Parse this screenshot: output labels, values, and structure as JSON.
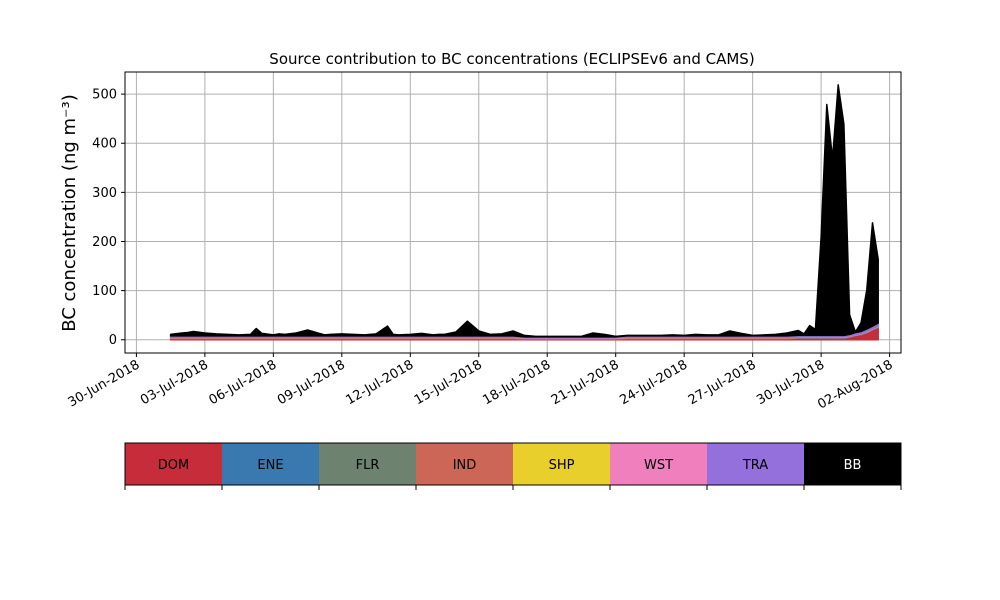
{
  "chart_data": {
    "type": "area",
    "title": "Source contribution to BC concentrations (ECLIPSEv6 and CAMS)",
    "xlabel": "",
    "ylabel": "BC concentration (ng m⁻³)",
    "ylim": [
      -27,
      545
    ],
    "xlim": [
      "2018-06-29T12:00",
      "2018-08-02T12:00"
    ],
    "yticks": [
      0,
      100,
      200,
      300,
      400,
      500
    ],
    "xticks": [
      "30-Jun-2018",
      "03-Jul-2018",
      "06-Jul-2018",
      "09-Jul-2018",
      "12-Jul-2018",
      "15-Jul-2018",
      "18-Jul-2018",
      "21-Jul-2018",
      "24-Jul-2018",
      "27-Jul-2018",
      "30-Jul-2018",
      "02-Aug-2018"
    ],
    "grid": true,
    "stacked": true,
    "x": [
      "2018-07-01T12:00",
      "2018-07-02T00:00",
      "2018-07-02T06:00",
      "2018-07-02T12:00",
      "2018-07-03T00:00",
      "2018-07-03T12:00",
      "2018-07-04T00:00",
      "2018-07-04T12:00",
      "2018-07-05T00:00",
      "2018-07-05T06:00",
      "2018-07-05T12:00",
      "2018-07-06T00:00",
      "2018-07-06T06:00",
      "2018-07-06T12:00",
      "2018-07-07T00:00",
      "2018-07-07T12:00",
      "2018-07-08T00:00",
      "2018-07-08T06:00",
      "2018-07-08T12:00",
      "2018-07-09T00:00",
      "2018-07-09T12:00",
      "2018-07-10T00:00",
      "2018-07-10T12:00",
      "2018-07-11T00:00",
      "2018-07-11T06:00",
      "2018-07-11T12:00",
      "2018-07-12T00:00",
      "2018-07-12T12:00",
      "2018-07-13T00:00",
      "2018-07-13T06:00",
      "2018-07-13T12:00",
      "2018-07-14T00:00",
      "2018-07-14T12:00",
      "2018-07-15T00:00",
      "2018-07-15T12:00",
      "2018-07-16T00:00",
      "2018-07-16T12:00",
      "2018-07-17T00:00",
      "2018-07-17T12:00",
      "2018-07-18T00:00",
      "2018-07-18T12:00",
      "2018-07-19T00:00",
      "2018-07-19T12:00",
      "2018-07-20T00:00",
      "2018-07-20T12:00",
      "2018-07-21T00:00",
      "2018-07-21T12:00",
      "2018-07-22T00:00",
      "2018-07-22T12:00",
      "2018-07-23T00:00",
      "2018-07-23T12:00",
      "2018-07-24T00:00",
      "2018-07-24T12:00",
      "2018-07-25T00:00",
      "2018-07-25T12:00",
      "2018-07-26T00:00",
      "2018-07-26T12:00",
      "2018-07-27T00:00",
      "2018-07-27T12:00",
      "2018-07-28T00:00",
      "2018-07-28T12:00",
      "2018-07-29T00:00",
      "2018-07-29T06:00",
      "2018-07-29T12:00",
      "2018-07-29T18:00",
      "2018-07-30T00:00",
      "2018-07-30T06:00",
      "2018-07-30T12:00",
      "2018-07-30T18:00",
      "2018-07-31T00:00",
      "2018-07-31T06:00",
      "2018-07-31T12:00",
      "2018-07-31T18:00",
      "2018-08-01T00:00",
      "2018-08-01T06:00",
      "2018-08-01T12:00"
    ],
    "series": [
      {
        "name": "DOM",
        "color": "#c62c3a",
        "values": [
          2,
          2,
          2,
          2,
          2,
          2,
          2,
          2,
          2,
          2,
          2,
          2,
          2,
          2,
          2,
          2,
          2,
          2,
          2,
          2,
          2,
          2,
          2,
          2,
          2,
          2,
          2,
          2,
          2,
          2,
          2,
          2,
          2,
          2,
          2,
          2,
          2,
          1,
          1,
          1,
          1,
          1,
          1,
          1,
          1,
          1,
          2,
          2,
          2,
          2,
          2,
          2,
          2,
          2,
          2,
          2,
          2,
          2,
          2,
          2,
          2,
          3,
          3,
          3,
          3,
          3,
          3,
          3,
          3,
          3,
          5,
          8,
          10,
          14,
          20,
          25
        ]
      },
      {
        "name": "ENE",
        "color": "#3a78b0",
        "values": [
          0.5,
          0.5,
          0.5,
          0.5,
          0.5,
          0.5,
          0.5,
          0.5,
          0.5,
          0.5,
          0.5,
          0.5,
          0.5,
          0.5,
          0.5,
          0.5,
          0.5,
          0.5,
          0.5,
          0.5,
          0.5,
          0.5,
          0.5,
          0.5,
          0.5,
          0.5,
          0.5,
          0.5,
          0.5,
          0.5,
          0.5,
          0.5,
          0.5,
          0.5,
          0.5,
          0.5,
          0.5,
          0.5,
          0.5,
          0.5,
          0.5,
          0.5,
          0.5,
          0.5,
          0.5,
          0.5,
          0.5,
          0.5,
          0.5,
          0.5,
          0.5,
          0.5,
          0.5,
          0.5,
          0.5,
          0.5,
          0.5,
          0.5,
          0.5,
          0.5,
          0.5,
          0.5,
          0.5,
          0.5,
          0.5,
          0.5,
          0.5,
          0.5,
          0.5,
          0.5,
          0.5,
          0.5,
          0.5,
          0.5,
          0.5,
          0.5
        ]
      },
      {
        "name": "FLR",
        "color": "#6e8270",
        "values": [
          0.5,
          0.5,
          0.5,
          0.5,
          0.5,
          0.5,
          0.5,
          0.5,
          0.5,
          0.5,
          0.5,
          0.5,
          0.5,
          0.5,
          0.5,
          0.5,
          0.5,
          0.5,
          0.5,
          0.5,
          0.5,
          0.5,
          0.5,
          0.5,
          0.5,
          0.5,
          0.5,
          0.5,
          0.5,
          0.5,
          0.5,
          0.5,
          0.5,
          0.5,
          0.5,
          0.5,
          0.5,
          0.5,
          0.5,
          0.5,
          0.5,
          0.5,
          0.5,
          0.5,
          0.5,
          0.5,
          0.5,
          0.5,
          0.5,
          0.5,
          0.5,
          0.5,
          0.5,
          0.5,
          0.5,
          0.5,
          0.5,
          0.5,
          0.5,
          0.5,
          0.5,
          0.5,
          0.5,
          0.5,
          0.5,
          0.5,
          0.5,
          0.5,
          0.5,
          0.5,
          0.5,
          0.5,
          0.5,
          0.5,
          0.5,
          0.5
        ]
      },
      {
        "name": "IND",
        "color": "#cc6656",
        "values": [
          1,
          1,
          1,
          1,
          1,
          1,
          1,
          1,
          1,
          1,
          1,
          1,
          1,
          1,
          1,
          1,
          1,
          1,
          1,
          1,
          1,
          1,
          1,
          1,
          1,
          1,
          1,
          1,
          1,
          1,
          1,
          1,
          1,
          1,
          1,
          1,
          1,
          1,
          1,
          1,
          1,
          1,
          1,
          1,
          1,
          1,
          1,
          1,
          1,
          1,
          1,
          1,
          1,
          1,
          1,
          1,
          1,
          1,
          1,
          1,
          1,
          1,
          1,
          1,
          1,
          1,
          1,
          1,
          1,
          1,
          1,
          1,
          1,
          1,
          1,
          1
        ]
      },
      {
        "name": "SHP",
        "color": "#e8cf2c",
        "values": [
          0.3,
          0.3,
          0.3,
          0.3,
          0.3,
          0.3,
          0.3,
          0.3,
          0.3,
          0.3,
          0.3,
          0.3,
          0.3,
          0.3,
          0.3,
          0.3,
          0.3,
          0.3,
          0.3,
          0.3,
          0.3,
          0.3,
          0.3,
          0.3,
          0.3,
          0.3,
          0.3,
          0.3,
          0.3,
          0.3,
          0.3,
          0.3,
          0.3,
          0.3,
          0.3,
          0.3,
          0.3,
          0.3,
          0.3,
          0.3,
          0.3,
          0.3,
          0.3,
          0.3,
          0.3,
          0.3,
          0.3,
          0.3,
          0.3,
          0.3,
          0.3,
          0.3,
          0.3,
          0.3,
          0.3,
          0.3,
          0.3,
          0.3,
          0.3,
          0.3,
          0.3,
          0.3,
          0.3,
          0.3,
          0.3,
          0.3,
          0.3,
          0.3,
          0.3,
          0.3,
          0.3,
          0.3,
          0.3,
          0.3,
          0.3,
          0.3
        ]
      },
      {
        "name": "WST",
        "color": "#f07fbd",
        "values": [
          0.5,
          0.5,
          0.5,
          0.5,
          0.5,
          0.5,
          0.5,
          0.5,
          0.5,
          0.5,
          0.5,
          0.5,
          0.5,
          0.5,
          0.5,
          0.5,
          0.5,
          0.5,
          0.5,
          0.5,
          0.5,
          0.5,
          0.5,
          0.5,
          0.5,
          0.5,
          0.5,
          0.5,
          0.5,
          0.5,
          0.5,
          0.5,
          0.5,
          0.5,
          0.5,
          0.5,
          0.5,
          0.5,
          0.5,
          0.5,
          0.5,
          0.5,
          0.5,
          0.5,
          0.5,
          0.5,
          0.5,
          0.5,
          0.5,
          0.5,
          0.5,
          0.5,
          0.5,
          0.5,
          0.5,
          0.5,
          0.5,
          0.5,
          0.5,
          0.5,
          0.5,
          0.5,
          0.5,
          0.5,
          0.5,
          0.5,
          0.5,
          0.5,
          0.5,
          0.5,
          0.5,
          0.5,
          0.5,
          0.5,
          0.5,
          0.5
        ]
      },
      {
        "name": "TRA",
        "color": "#9370db",
        "values": [
          3,
          3,
          3,
          3,
          3,
          3,
          3,
          3,
          3,
          3,
          3,
          3,
          3,
          3,
          3,
          3,
          3,
          3,
          3,
          3,
          3,
          3,
          3,
          3,
          3,
          3,
          3,
          3,
          3,
          3,
          3,
          3,
          3,
          3,
          3,
          3,
          3,
          2,
          2,
          2,
          2,
          2,
          2,
          2,
          2,
          2,
          3,
          3,
          3,
          3,
          3,
          3,
          3,
          3,
          3,
          3,
          3,
          3,
          3,
          3,
          3,
          3,
          3,
          3,
          3,
          3,
          3,
          3,
          3,
          3,
          3,
          4,
          4,
          5,
          5,
          6
        ]
      },
      {
        "name": "BB",
        "color": "#000000",
        "values": [
          3,
          6,
          7,
          9,
          6,
          4,
          3,
          2,
          3,
          15,
          5,
          2,
          4,
          3,
          6,
          12,
          5,
          2,
          3,
          4,
          3,
          2,
          4,
          20,
          3,
          2,
          3,
          5,
          2,
          3,
          3,
          8,
          30,
          10,
          3,
          4,
          10,
          3,
          1,
          1,
          1,
          1,
          1,
          8,
          5,
          1,
          1,
          1,
          1,
          1,
          2,
          1,
          3,
          2,
          2,
          10,
          5,
          1,
          2,
          3,
          6,
          10,
          3,
          20,
          12,
          200,
          470,
          360,
          510,
          430,
          40,
          1,
          18,
          80,
          210,
          130
        ]
      }
    ]
  }
}
